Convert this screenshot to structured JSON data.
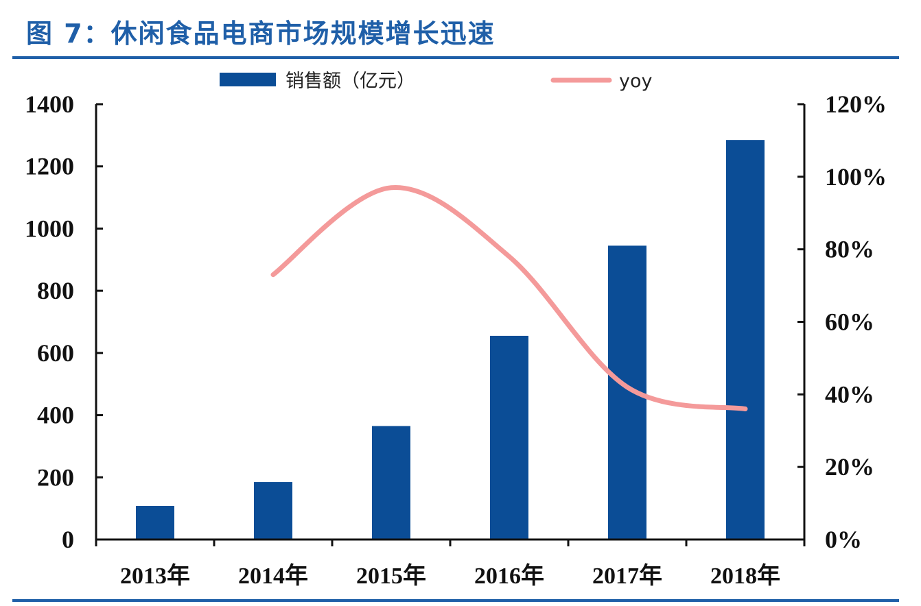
{
  "header": {
    "title": "图 7：休闲食品电商市场规模增长迅速"
  },
  "colors": {
    "bar": "#0b4d96",
    "line": "#f49a9a",
    "rule": "#1f5fa8",
    "axis": "#111111"
  },
  "chart_data": {
    "type": "bar",
    "title": "",
    "categories": [
      "2013年",
      "2014年",
      "2015年",
      "2016年",
      "2017年",
      "2018年"
    ],
    "series": [
      {
        "name": "销售额（亿元）",
        "type": "bar",
        "axis": "left",
        "values": [
          108,
          185,
          365,
          655,
          945,
          1285
        ]
      },
      {
        "name": "yoy",
        "type": "line",
        "axis": "right",
        "values": [
          null,
          73,
          97,
          78,
          42,
          36
        ]
      }
    ],
    "y_left": {
      "min": 0,
      "max": 1400,
      "ticks": [
        "0",
        "200",
        "400",
        "600",
        "800",
        "1000",
        "1200",
        "1400"
      ]
    },
    "y_right": {
      "min": 0,
      "max": 120,
      "ticks": [
        "0%",
        "20%",
        "40%",
        "60%",
        "80%",
        "100%",
        "120%"
      ]
    },
    "legend": {
      "position": "top"
    },
    "grid": false
  }
}
